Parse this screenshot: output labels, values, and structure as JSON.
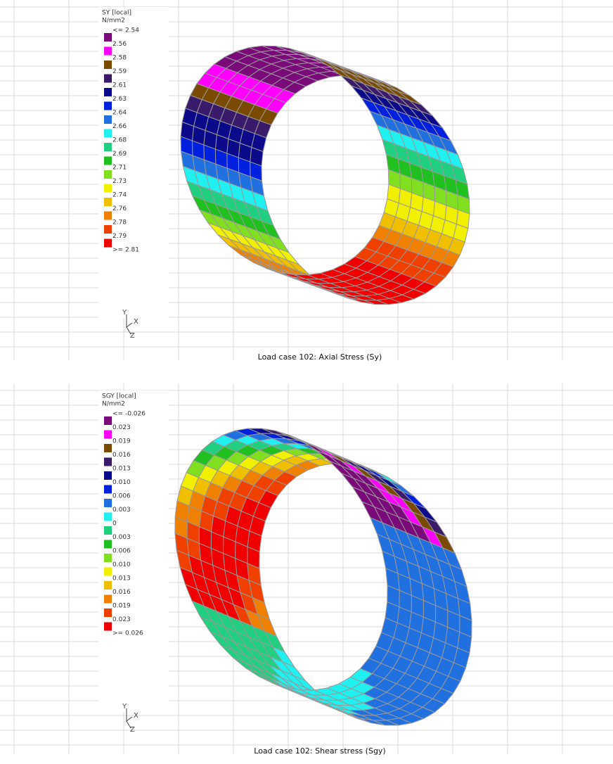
{
  "panels": [
    {
      "legend": {
        "title": "SY [local]",
        "unit": "N/mm2",
        "labels": [
          "<= 2.54",
          "2.56",
          "2.58",
          "2.59",
          "2.61",
          "2.63",
          "2.64",
          "2.66",
          "2.68",
          "2.69",
          "2.71",
          "2.73",
          "2.74",
          "2.76",
          "2.78",
          "2.79",
          ">= 2.81"
        ],
        "colors": [
          "#7a0a7a",
          "#ff00ff",
          "#7a4a00",
          "#3a1a6a",
          "#0a0a8a",
          "#0020e0",
          "#2070e0",
          "#20f0f0",
          "#20d080",
          "#20c020",
          "#80e020",
          "#f0f000",
          "#f0c000",
          "#f08000",
          "#f04000",
          "#f00000"
        ]
      },
      "axes": [
        "Y",
        "X",
        "Z"
      ],
      "caption": "Load case 102: Axial Stress (Sy)"
    },
    {
      "legend": {
        "title": "SGY [local]",
        "unit": "N/mm2",
        "labels": [
          "<= -0.026",
          "0.023",
          "0.019",
          "0.016",
          "0.013",
          "0.010",
          "0.006",
          "0.003",
          "0",
          "0.003",
          "0.006",
          "0.010",
          "0.013",
          "0.016",
          "0.019",
          "0.023",
          ">= 0.026"
        ],
        "colors": [
          "#7a0a7a",
          "#ff00ff",
          "#7a4a00",
          "#3a1a6a",
          "#0a0a8a",
          "#0020e0",
          "#2070e0",
          "#20f0f0",
          "#20d080",
          "#20c020",
          "#80e020",
          "#f0f000",
          "#f0c000",
          "#f08000",
          "#f04000",
          "#f00000"
        ]
      },
      "axes": [
        "Y",
        "X",
        "Z"
      ],
      "caption": "Load case 102: Shear stress (Sgy)"
    }
  ]
}
